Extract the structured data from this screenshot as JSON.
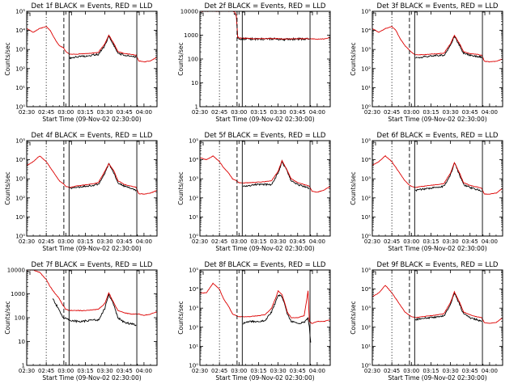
{
  "figure": {
    "colors": {
      "events": "#000000",
      "lld": "#dd0000",
      "background": "#ffffff"
    },
    "x_tick_labels": [
      "02:30",
      "02:45",
      "03:00",
      "03:15",
      "03:30",
      "03:45",
      "04:00"
    ],
    "xlabel": "Start Time (09-Nov-02 02:30:00)",
    "ylabel": "Counts/sec",
    "markers": {
      "dotted_min": 15,
      "dashed_min": 28.5,
      "solid1_min": 32.5,
      "solid2_min": 84.5
    },
    "x_range_min": [
      0,
      100
    ]
  },
  "chart_data": [
    {
      "type": "line",
      "title": "Det 1f BLACK = Events, RED = LLD",
      "ylim_log10": [
        0,
        5
      ],
      "ytick_labels": [
        "10⁰",
        "10¹",
        "10²",
        "10³",
        "10⁴",
        "10⁵"
      ],
      "xlabel": "Start Time (09-Nov-02 02:30:00)",
      "ylabel": "Counts/sec",
      "series": [
        {
          "name": "Events",
          "color": "#000000",
          "x": [
            33,
            38,
            44,
            50,
            55,
            60,
            63,
            67,
            70,
            75,
            80,
            84
          ],
          "log10": [
            2.55,
            2.6,
            2.65,
            2.7,
            2.75,
            3.2,
            3.7,
            3.2,
            2.8,
            2.7,
            2.65,
            2.6
          ]
        },
        {
          "name": "LLD",
          "color": "#dd0000",
          "x": [
            0,
            5,
            10,
            15,
            18,
            22,
            25,
            28,
            30,
            33,
            38,
            44,
            50,
            55,
            60,
            63,
            67,
            70,
            75,
            80,
            84,
            86,
            90,
            95,
            100
          ],
          "log10": [
            4.1,
            3.9,
            4.1,
            4.2,
            4.0,
            3.5,
            3.2,
            3.1,
            2.9,
            2.75,
            2.75,
            2.78,
            2.8,
            2.85,
            3.3,
            3.75,
            3.3,
            2.9,
            2.78,
            2.75,
            2.7,
            2.4,
            2.35,
            2.4,
            2.6
          ]
        }
      ]
    },
    {
      "type": "line",
      "title": "Det 2f BLACK = Events, RED = LLD",
      "ylim_log10": [
        0,
        4
      ],
      "ytick_labels": [
        "1",
        "10",
        "100",
        "1000",
        "10000"
      ],
      "xlabel": "Start Time (09-Nov-02 02:30:00)",
      "ylabel": "Counts/sec",
      "series": [
        {
          "name": "Events",
          "color": "#000000",
          "x": [
            26,
            28,
            29,
            31,
            35,
            45,
            55,
            65,
            75,
            84
          ],
          "log10": [
            3.95,
            3.8,
            2.9,
            2.85,
            2.85,
            2.83,
            2.85,
            2.82,
            2.84,
            2.83
          ]
        },
        {
          "name": "LLD",
          "color": "#dd0000",
          "x": [
            0,
            10,
            20,
            25,
            27,
            28,
            29,
            31,
            35,
            45,
            55,
            65,
            75,
            84,
            86,
            90,
            95,
            100
          ],
          "log10": [
            4.0,
            4.0,
            4.0,
            4.0,
            3.95,
            3.8,
            2.9,
            2.88,
            2.87,
            2.85,
            2.86,
            2.84,
            2.85,
            2.85,
            2.85,
            2.83,
            2.84,
            2.9
          ]
        }
      ]
    },
    {
      "type": "line",
      "title": "Det 3f BLACK = Events, RED = LLD",
      "ylim_log10": [
        0,
        5
      ],
      "ytick_labels": [
        "10⁰",
        "10¹",
        "10²",
        "10³",
        "10⁴",
        "10⁵"
      ],
      "xlabel": "Start Time (09-Nov-02 02:30:00)",
      "ylabel": "Counts/sec",
      "series": [
        {
          "name": "Events",
          "color": "#000000",
          "x": [
            33,
            38,
            44,
            50,
            55,
            60,
            63,
            67,
            70,
            75,
            80,
            84
          ],
          "log10": [
            2.55,
            2.6,
            2.65,
            2.7,
            2.7,
            3.2,
            3.7,
            3.2,
            2.8,
            2.7,
            2.65,
            2.6
          ]
        },
        {
          "name": "LLD",
          "color": "#dd0000",
          "x": [
            0,
            5,
            10,
            15,
            18,
            22,
            25,
            28,
            30,
            33,
            38,
            44,
            50,
            55,
            60,
            63,
            67,
            70,
            75,
            80,
            84,
            86,
            90,
            95,
            100
          ],
          "log10": [
            4.1,
            3.9,
            4.1,
            4.2,
            4.0,
            3.5,
            3.2,
            3.0,
            2.85,
            2.72,
            2.72,
            2.75,
            2.78,
            2.8,
            3.3,
            3.75,
            3.3,
            2.9,
            2.78,
            2.75,
            2.7,
            2.38,
            2.35,
            2.38,
            2.5
          ]
        }
      ]
    },
    {
      "type": "line",
      "title": "Det 4f BLACK = Events, RED = LLD",
      "ylim_log10": [
        0,
        5
      ],
      "ytick_labels": [
        "10⁰",
        "10¹",
        "10²",
        "10³",
        "10⁴",
        "10⁵"
      ],
      "xlabel": "Start Time (09-Nov-02 02:30:00)",
      "ylabel": "Counts/sec",
      "series": [
        {
          "name": "Events",
          "color": "#000000",
          "x": [
            33,
            38,
            44,
            50,
            55,
            60,
            63,
            67,
            70,
            75,
            80,
            84
          ],
          "log10": [
            2.5,
            2.55,
            2.6,
            2.65,
            2.7,
            3.3,
            3.8,
            3.3,
            2.8,
            2.6,
            2.5,
            2.4
          ]
        },
        {
          "name": "LLD",
          "color": "#dd0000",
          "x": [
            0,
            5,
            10,
            15,
            18,
            22,
            25,
            28,
            30,
            33,
            38,
            44,
            50,
            55,
            60,
            63,
            67,
            70,
            75,
            80,
            84,
            86,
            90,
            95,
            100
          ],
          "log10": [
            3.7,
            3.9,
            4.2,
            3.9,
            3.6,
            3.2,
            2.9,
            2.75,
            2.6,
            2.55,
            2.62,
            2.68,
            2.72,
            2.8,
            3.4,
            3.8,
            3.4,
            2.9,
            2.7,
            2.62,
            2.55,
            2.22,
            2.2,
            2.25,
            2.4
          ]
        }
      ]
    },
    {
      "type": "line",
      "title": "Det 5f BLACK = Events, RED = LLD",
      "ylim_log10": [
        0,
        5
      ],
      "ytick_labels": [
        "10⁰",
        "10¹",
        "10²",
        "10³",
        "10⁴",
        "10⁵"
      ],
      "xlabel": "Start Time (09-Nov-02 02:30:00)",
      "ylabel": "Counts/sec",
      "series": [
        {
          "name": "Events",
          "color": "#000000",
          "x": [
            33,
            38,
            44,
            50,
            55,
            60,
            63,
            67,
            70,
            75,
            80,
            84
          ],
          "log10": [
            2.6,
            2.65,
            2.7,
            2.7,
            2.7,
            3.3,
            3.9,
            3.4,
            2.9,
            2.7,
            2.6,
            2.5
          ]
        },
        {
          "name": "LLD",
          "color": "#dd0000",
          "x": [
            0,
            5,
            10,
            15,
            18,
            22,
            25,
            28,
            30,
            33,
            38,
            44,
            50,
            55,
            60,
            63,
            67,
            70,
            75,
            80,
            84,
            86,
            90,
            95,
            100
          ],
          "log10": [
            4.1,
            4.0,
            4.2,
            3.9,
            3.6,
            3.3,
            3.0,
            2.9,
            2.8,
            2.78,
            2.8,
            2.82,
            2.85,
            2.9,
            3.4,
            3.95,
            3.45,
            3.0,
            2.8,
            2.7,
            2.62,
            2.35,
            2.3,
            2.4,
            2.6
          ]
        }
      ]
    },
    {
      "type": "line",
      "title": "Det 6f BLACK = Events, RED = LLD",
      "ylim_log10": [
        0,
        5
      ],
      "ytick_labels": [
        "10⁰",
        "10¹",
        "10²",
        "10³",
        "10⁴",
        "10⁵"
      ],
      "xlabel": "Start Time (09-Nov-02 02:30:00)",
      "ylabel": "Counts/sec",
      "series": [
        {
          "name": "Events",
          "color": "#000000",
          "x": [
            33,
            38,
            44,
            50,
            55,
            60,
            63,
            67,
            70,
            75,
            80,
            84
          ],
          "log10": [
            2.4,
            2.45,
            2.5,
            2.55,
            2.6,
            3.2,
            3.85,
            3.2,
            2.7,
            2.55,
            2.45,
            2.35
          ]
        },
        {
          "name": "LLD",
          "color": "#dd0000",
          "x": [
            0,
            5,
            10,
            15,
            18,
            22,
            25,
            28,
            30,
            33,
            38,
            44,
            50,
            55,
            60,
            63,
            67,
            70,
            75,
            80,
            84,
            86,
            90,
            95,
            100
          ],
          "log10": [
            3.7,
            3.9,
            4.2,
            3.9,
            3.6,
            3.2,
            2.9,
            2.7,
            2.6,
            2.55,
            2.6,
            2.65,
            2.7,
            2.75,
            3.3,
            3.85,
            3.3,
            2.8,
            2.65,
            2.58,
            2.5,
            2.2,
            2.2,
            2.25,
            2.5
          ]
        }
      ]
    },
    {
      "type": "line",
      "title": "Det 7f BLACK = Events, RED = LLD",
      "ylim_log10": [
        0,
        4
      ],
      "ytick_labels": [
        "1",
        "10",
        "100",
        "1000",
        "10000"
      ],
      "xlabel": "Start Time (09-Nov-02 02:30:00)",
      "ylabel": "Counts/sec",
      "series": [
        {
          "name": "Events",
          "color": "#000000",
          "x": [
            20,
            28,
            33,
            38,
            44,
            50,
            55,
            60,
            63,
            67,
            70,
            75,
            80,
            84
          ],
          "log10": [
            2.8,
            2.0,
            1.9,
            1.85,
            1.85,
            1.9,
            1.9,
            2.4,
            3.0,
            2.5,
            2.0,
            1.8,
            1.75,
            1.7
          ]
        },
        {
          "name": "LLD",
          "color": "#dd0000",
          "x": [
            0,
            5,
            10,
            15,
            18,
            22,
            25,
            28,
            30,
            33,
            38,
            44,
            50,
            55,
            60,
            63,
            67,
            70,
            75,
            80,
            84,
            86,
            90,
            95,
            100
          ],
          "log10": [
            4.0,
            4.0,
            3.9,
            3.6,
            3.3,
            3.0,
            2.8,
            2.5,
            2.35,
            2.3,
            2.3,
            2.3,
            2.32,
            2.35,
            2.6,
            3.05,
            2.6,
            2.3,
            2.2,
            2.15,
            2.15,
            2.15,
            2.1,
            2.15,
            2.25
          ]
        }
      ]
    },
    {
      "type": "line",
      "title": "Det 8f BLACK = Events, RED = LLD",
      "ylim_log10": [
        0,
        5
      ],
      "ytick_labels": [
        "10⁰",
        "10¹",
        "10²",
        "10³",
        "10⁴",
        "10⁵"
      ],
      "xlabel": "Start Time (09-Nov-02 02:30:00)",
      "ylabel": "Counts/sec",
      "series": [
        {
          "name": "Events",
          "color": "#000000",
          "x": [
            33,
            38,
            44,
            50,
            55,
            58,
            60,
            63,
            65,
            67,
            70,
            75,
            80,
            83,
            84,
            85
          ],
          "log10": [
            2.2,
            2.3,
            2.3,
            2.35,
            2.8,
            3.3,
            3.7,
            3.6,
            3.2,
            2.7,
            2.3,
            2.2,
            2.25,
            2.5,
            2.0,
            1.2
          ]
        },
        {
          "name": "LLD",
          "color": "#dd0000",
          "x": [
            0,
            5,
            10,
            15,
            18,
            22,
            25,
            28,
            30,
            33,
            38,
            44,
            50,
            55,
            58,
            60,
            63,
            65,
            67,
            70,
            75,
            80,
            83,
            84,
            86,
            90,
            95,
            100
          ],
          "log10": [
            3.8,
            3.8,
            4.3,
            4.0,
            3.5,
            3.1,
            2.7,
            2.6,
            2.55,
            2.55,
            2.55,
            2.6,
            2.65,
            3.0,
            3.5,
            3.9,
            3.7,
            3.3,
            2.8,
            2.5,
            2.5,
            2.6,
            3.9,
            2.3,
            2.2,
            2.3,
            2.3,
            2.4
          ]
        }
      ]
    },
    {
      "type": "line",
      "title": "Det 9f BLACK = Events, RED = LLD",
      "ylim_log10": [
        0,
        5
      ],
      "ytick_labels": [
        "10⁰",
        "10¹",
        "10²",
        "10³",
        "10⁴",
        "10⁵"
      ],
      "xlabel": "Start Time (09-Nov-02 02:30:00)",
      "ylabel": "Counts/sec",
      "series": [
        {
          "name": "Events",
          "color": "#000000",
          "x": [
            33,
            38,
            44,
            50,
            55,
            60,
            63,
            67,
            70,
            75,
            80,
            84
          ],
          "log10": [
            2.4,
            2.45,
            2.5,
            2.55,
            2.6,
            3.2,
            3.8,
            3.2,
            2.7,
            2.5,
            2.4,
            2.3
          ]
        },
        {
          "name": "LLD",
          "color": "#dd0000",
          "x": [
            0,
            5,
            10,
            15,
            18,
            22,
            25,
            28,
            30,
            33,
            38,
            44,
            50,
            55,
            60,
            63,
            67,
            70,
            75,
            80,
            84,
            86,
            90,
            95,
            100
          ],
          "log10": [
            3.6,
            3.8,
            4.2,
            3.8,
            3.5,
            3.1,
            2.8,
            2.65,
            2.55,
            2.5,
            2.55,
            2.6,
            2.65,
            2.7,
            3.3,
            3.85,
            3.3,
            2.8,
            2.65,
            2.55,
            2.5,
            2.25,
            2.2,
            2.25,
            2.5
          ]
        }
      ]
    }
  ]
}
